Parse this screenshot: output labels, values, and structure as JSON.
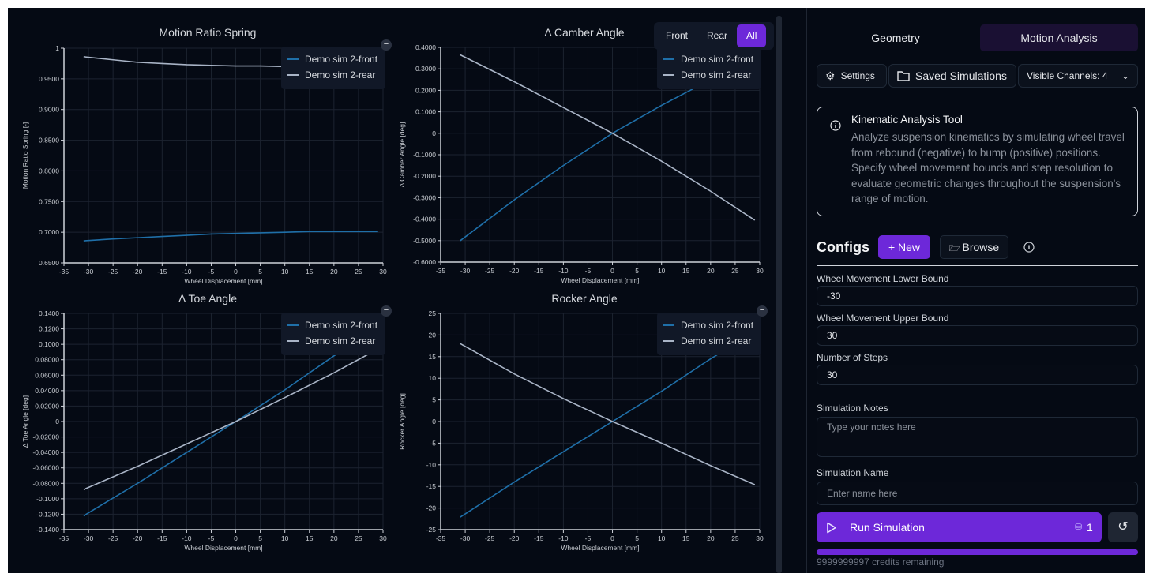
{
  "view_toggle": {
    "options": [
      "Front",
      "Rear",
      "All"
    ],
    "selected": "All"
  },
  "colors": {
    "front": "#1f6fa8",
    "rear": "#a9b4c6",
    "accent": "#6d28d9",
    "background": "#050a14"
  },
  "legend": {
    "front": "Demo sim 2-front",
    "rear": "Demo sim 2-rear",
    "collapse_icon": "minus-icon"
  },
  "chart_data": [
    {
      "type": "line",
      "title": "Motion Ratio Spring",
      "xlabel": "Wheel Displacement [mm]",
      "ylabel": "Motion Ratio Spring [-]",
      "xlim": [
        -35,
        30
      ],
      "ylim": [
        0.65,
        1
      ],
      "xticks": [
        "-35",
        "-30",
        "-25",
        "-20",
        "-15",
        "-10",
        "-5",
        "0",
        "5",
        "10",
        "15",
        "20",
        "25",
        "30"
      ],
      "yticks": [
        "0.6500",
        "0.7000",
        "0.7500",
        "0.8000",
        "0.8500",
        "0.9000",
        "0.9500",
        "1"
      ],
      "grid": true,
      "legend_position": "top-right",
      "x": [
        -31,
        -25,
        -20,
        -15,
        -10,
        -5,
        0,
        5,
        10,
        15,
        20,
        25,
        29
      ],
      "series": [
        {
          "name": "Demo sim 2-front",
          "values": [
            0.686,
            0.689,
            0.691,
            0.693,
            0.695,
            0.697,
            0.698,
            0.699,
            0.7,
            0.701,
            0.701,
            0.701,
            0.701
          ]
        },
        {
          "name": "Demo sim 2-rear",
          "values": [
            0.986,
            0.981,
            0.977,
            0.975,
            0.973,
            0.972,
            0.971,
            0.971,
            0.97,
            0.97,
            0.97,
            0.97,
            0.97
          ]
        }
      ]
    },
    {
      "type": "line",
      "title": "Δ Camber Angle",
      "xlabel": "Wheel Displacement [mm]",
      "ylabel": "Δ Camber Angle [deg]",
      "xlim": [
        -35,
        30
      ],
      "ylim": [
        -0.6,
        0.4
      ],
      "xticks": [
        "-35",
        "-30",
        "-25",
        "-20",
        "-15",
        "-10",
        "-5",
        "0",
        "5",
        "10",
        "15",
        "20",
        "25",
        "30"
      ],
      "yticks": [
        "-0.6000",
        "-0.5000",
        "-0.4000",
        "-0.3000",
        "-0.2000",
        "-0.1000",
        "0",
        "0.1000",
        "0.2000",
        "0.3000",
        "0.4000"
      ],
      "grid": true,
      "legend_position": "top-right",
      "x": [
        -31,
        -20,
        -10,
        0,
        10,
        20,
        29
      ],
      "series": [
        {
          "name": "Demo sim 2-front",
          "values": [
            -0.5,
            -0.31,
            -0.15,
            0,
            0.13,
            0.25,
            0.35
          ]
        },
        {
          "name": "Demo sim 2-rear",
          "values": [
            0.365,
            0.24,
            0.12,
            0,
            -0.13,
            -0.27,
            -0.405
          ]
        }
      ]
    },
    {
      "type": "line",
      "title": "Δ Toe Angle",
      "xlabel": "Wheel Displacement [mm]",
      "ylabel": "Δ Toe Angle [deg]",
      "xlim": [
        -35,
        30
      ],
      "ylim": [
        -0.14,
        0.14
      ],
      "xticks": [
        "-35",
        "-30",
        "-25",
        "-20",
        "-15",
        "-10",
        "-5",
        "0",
        "5",
        "10",
        "15",
        "20",
        "25",
        "30"
      ],
      "yticks": [
        "-0.1400",
        "-0.1200",
        "-0.1000",
        "-0.08000",
        "-0.06000",
        "-0.04000",
        "-0.02000",
        "0",
        "0.02000",
        "0.04000",
        "0.06000",
        "0.08000",
        "0.1000",
        "0.1200",
        "0.1400"
      ],
      "grid": true,
      "legend_position": "top-right",
      "x": [
        -31,
        -20,
        -10,
        0,
        10,
        20,
        29
      ],
      "series": [
        {
          "name": "Demo sim 2-front",
          "values": [
            -0.122,
            -0.08,
            -0.04,
            0,
            0.041,
            0.085,
            0.123
          ]
        },
        {
          "name": "Demo sim 2-rear",
          "values": [
            -0.088,
            -0.058,
            -0.029,
            0,
            0.031,
            0.063,
            0.094
          ]
        }
      ]
    },
    {
      "type": "line",
      "title": "Rocker Angle",
      "xlabel": "Wheel Displacement [mm]",
      "ylabel": "Rocker Angle [deg]",
      "xlim": [
        -35,
        30
      ],
      "ylim": [
        -25,
        25
      ],
      "xticks": [
        "-35",
        "-30",
        "-25",
        "-20",
        "-15",
        "-10",
        "-5",
        "0",
        "5",
        "10",
        "15",
        "20",
        "25",
        "30"
      ],
      "yticks": [
        "-25",
        "-20",
        "-15",
        "-10",
        "-5",
        "0",
        "5",
        "10",
        "15",
        "20",
        "25"
      ],
      "grid": true,
      "legend_position": "top-right",
      "x": [
        -31,
        -20,
        -10,
        0,
        10,
        20,
        29
      ],
      "series": [
        {
          "name": "Demo sim 2-front",
          "values": [
            -22.1,
            -14.0,
            -7.0,
            0,
            7.0,
            14.5,
            20.8
          ]
        },
        {
          "name": "Demo sim 2-rear",
          "values": [
            18.0,
            11.0,
            5.3,
            0,
            -5.0,
            -10.2,
            -14.6
          ]
        }
      ]
    }
  ],
  "panel": {
    "tabs": [
      "Geometry",
      "Motion Analysis"
    ],
    "active_tab": "Motion Analysis",
    "settings": "Settings",
    "saved": "Saved Simulations",
    "channels": "Visible Channels: 4",
    "info_title": "Kinematic Analysis Tool",
    "info_text": "Analyze suspension kinematics by simulating wheel travel from rebound (negative) to bump (positive) positions. Specify wheel movement bounds and step resolution to evaluate geometric changes throughout the suspension's range of motion.",
    "configs": "Configs",
    "new": "New",
    "browse": "Browse",
    "lower_label": "Wheel Movement Lower Bound",
    "lower_value": "-30",
    "upper_label": "Wheel Movement Upper Bound",
    "upper_value": "30",
    "steps_label": "Number of Steps",
    "steps_value": "30",
    "notes_label": "Simulation Notes",
    "notes_placeholder": "Type your notes here",
    "name_label": "Simulation Name",
    "name_placeholder": "Enter name here",
    "run": "Run Simulation",
    "run_cost": "1",
    "progress": 1.0,
    "credits": "9999999997 credits remaining"
  }
}
